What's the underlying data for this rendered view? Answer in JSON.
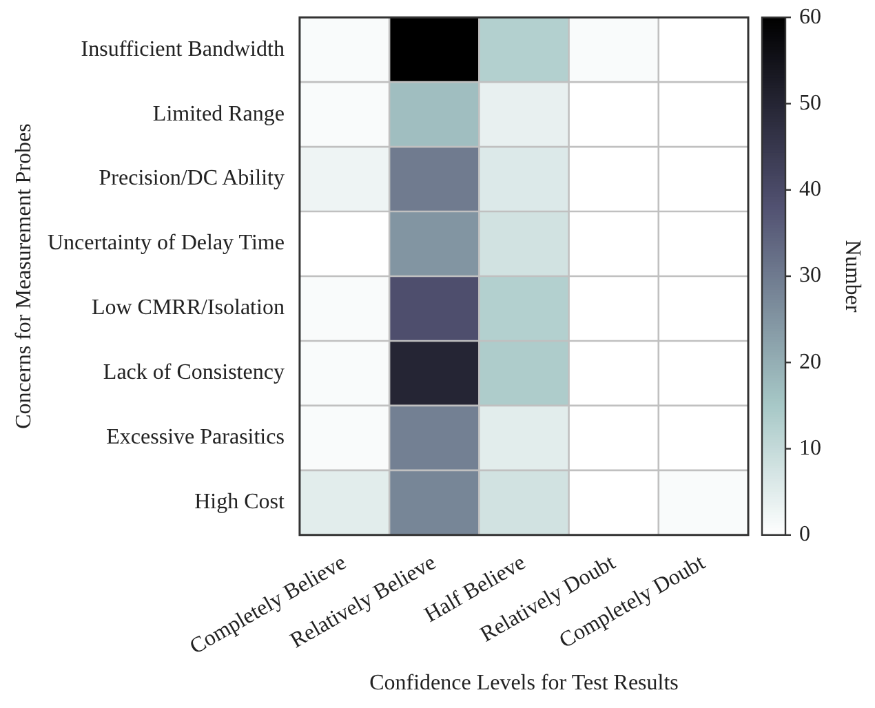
{
  "chart_data": {
    "type": "heatmap",
    "xlabel": "Confidence Levels for Test Results",
    "ylabel": "Concerns for Measurement Probes",
    "clabel": "Number",
    "categories": [
      "Completely Believe",
      "Relatively Believe",
      "Half Believe",
      "Relatively Doubt",
      "Completely Doubt"
    ],
    "y_categories": [
      "Insufficient Bandwidth",
      "Limited Range",
      "Precision/DC Ability",
      "Uncertainty of Delay Time",
      "Low CMRR/Isolation",
      "Lack of Consistency",
      "Excessive Parasitics",
      "High Cost"
    ],
    "cells": [
      [
        1,
        60,
        13,
        1,
        0
      ],
      [
        1,
        17,
        4,
        0,
        0
      ],
      [
        3,
        30,
        6,
        0,
        0
      ],
      [
        0,
        25,
        8,
        0,
        0
      ],
      [
        1,
        39,
        13,
        0,
        0
      ],
      [
        1,
        50,
        14,
        0,
        0
      ],
      [
        1,
        29,
        5,
        0,
        0
      ],
      [
        5,
        28,
        8,
        0,
        1
      ]
    ],
    "clim": [
      0,
      60
    ],
    "cticks": [
      0,
      10,
      20,
      30,
      40,
      50,
      60
    ]
  }
}
